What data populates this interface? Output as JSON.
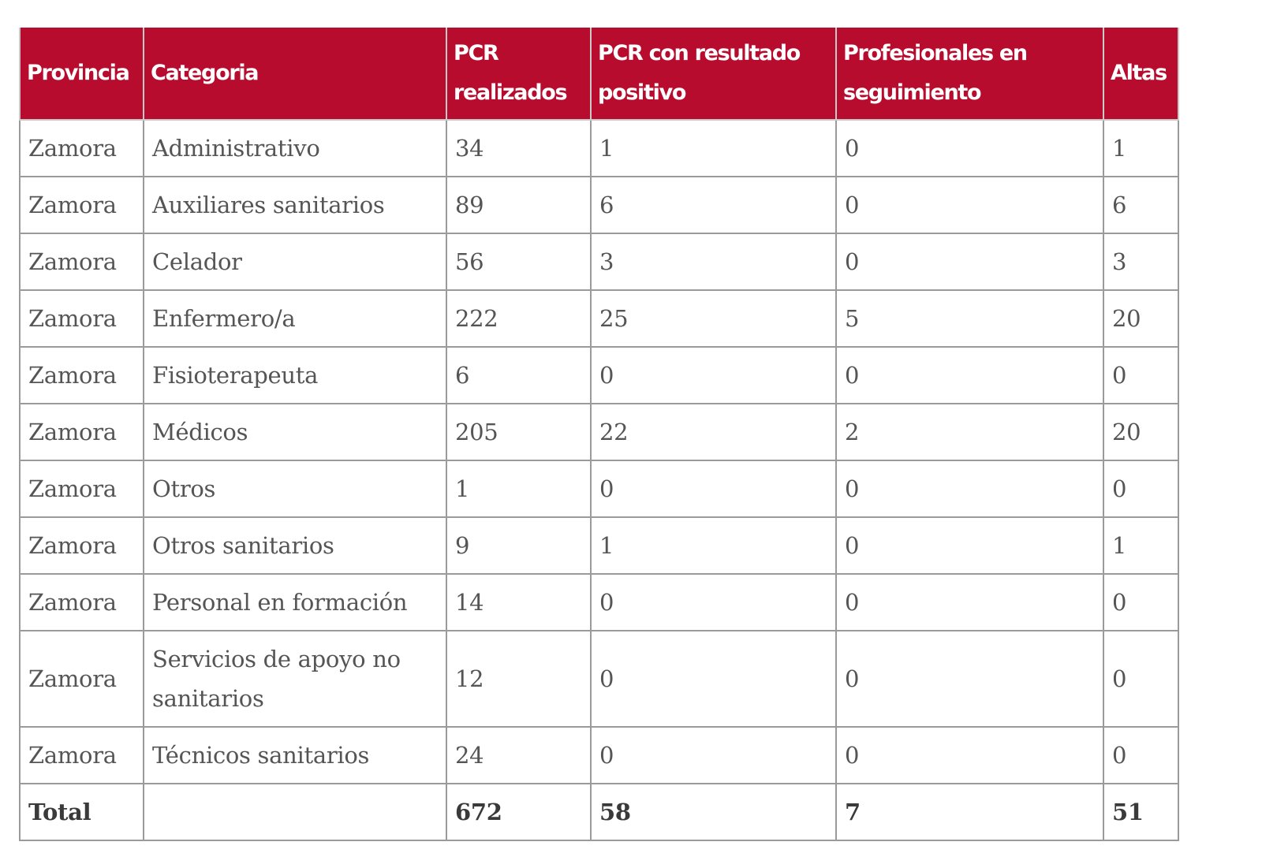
{
  "table": {
    "header_color": "#b80c2f",
    "columns": [
      "Provincia",
      "Categoria",
      "PCR realizados",
      "PCR con resultado positivo",
      "Profesionales en seguimiento",
      "Altas"
    ],
    "rows": [
      [
        "Zamora",
        "Administrativo",
        "34",
        "1",
        "0",
        "1"
      ],
      [
        "Zamora",
        "Auxiliares sanitarios",
        "89",
        "6",
        "0",
        "6"
      ],
      [
        "Zamora",
        "Celador",
        "56",
        "3",
        "0",
        "3"
      ],
      [
        "Zamora",
        "Enfermero/a",
        "222",
        "25",
        "5",
        "20"
      ],
      [
        "Zamora",
        "Fisioterapeuta",
        "6",
        "0",
        "0",
        "0"
      ],
      [
        "Zamora",
        "Médicos",
        "205",
        "22",
        "2",
        "20"
      ],
      [
        "Zamora",
        "Otros",
        "1",
        "0",
        "0",
        "0"
      ],
      [
        "Zamora",
        "Otros sanitarios",
        "9",
        "1",
        "0",
        "1"
      ],
      [
        "Zamora",
        "Personal en formación",
        "14",
        "0",
        "0",
        "0"
      ],
      [
        "Zamora",
        "Servicios de apoyo no sanitarios",
        "12",
        "0",
        "0",
        "0"
      ],
      [
        "Zamora",
        "Técnicos sanitarios",
        "24",
        "0",
        "0",
        "0"
      ]
    ],
    "total": [
      "Total",
      "",
      "672",
      "58",
      "7",
      "51"
    ]
  }
}
